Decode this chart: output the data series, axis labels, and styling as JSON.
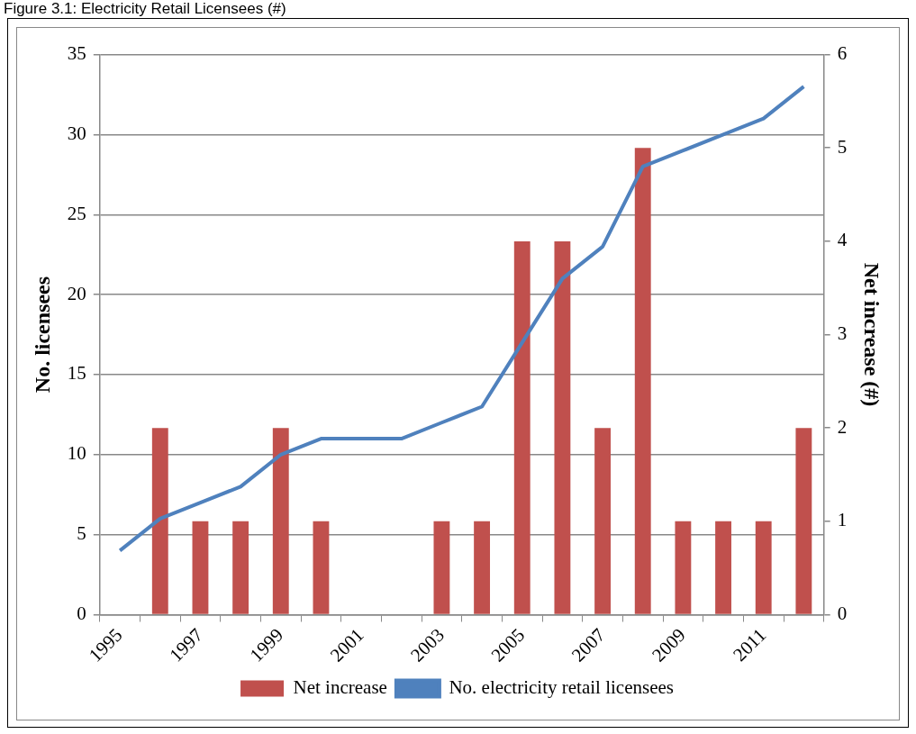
{
  "chart_data": {
    "type": "bar",
    "title": "Figure 3.1: Electricity Retail Licensees (#)",
    "ylabel": "No. licensees",
    "y2label": "Net increase (#)",
    "categories": [
      "1995",
      null,
      "1997",
      null,
      "1999",
      null,
      "2001",
      null,
      "2003",
      null,
      "2005",
      null,
      "2007",
      null,
      "2009",
      null,
      "2011",
      null
    ],
    "series": [
      {
        "name": "Net increase",
        "axis": "y2",
        "color": "#c0504d",
        "values": [
          null,
          2,
          1,
          1,
          2,
          1,
          0,
          0,
          1,
          1,
          4,
          4,
          2,
          5,
          1,
          1,
          1,
          2
        ]
      },
      {
        "name": "No. electricity retail licensees",
        "type": "line",
        "color": "#4f81bd",
        "values": [
          4,
          6,
          7,
          8,
          10,
          11,
          11,
          11,
          12,
          13,
          17,
          21,
          23,
          28,
          29,
          30,
          31,
          33
        ]
      }
    ],
    "ylim": [
      0,
      35
    ],
    "yticks": [
      0,
      5,
      10,
      15,
      20,
      25,
      30,
      35
    ],
    "y2lim": [
      0,
      6
    ],
    "y2ticks": [
      0,
      1,
      2,
      3,
      4,
      5,
      6
    ],
    "grid": "y",
    "legend": "bottom",
    "marker": "none"
  }
}
